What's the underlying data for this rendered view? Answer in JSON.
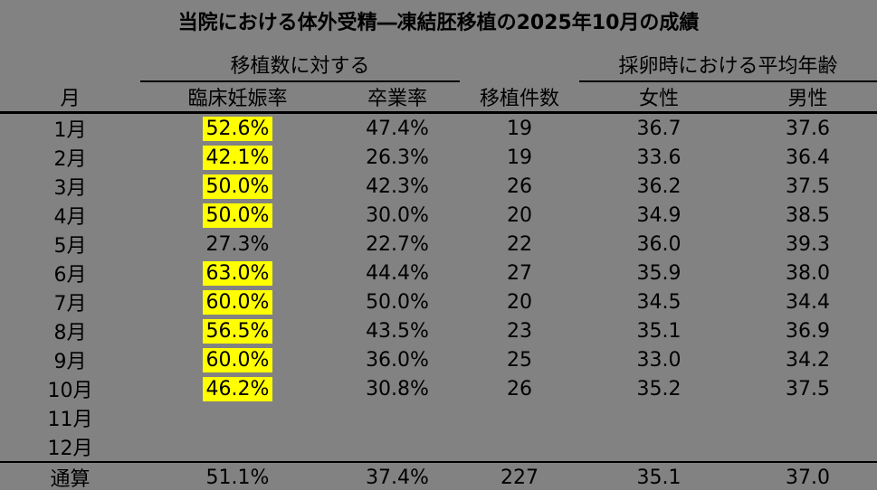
{
  "title": "当院における体外受精―凍結胚移植の2025年10月の成績",
  "colors": {
    "background": "#828282",
    "highlight": "#ffff00",
    "text": "#000000",
    "rule": "#000000"
  },
  "table": {
    "group_headers": [
      {
        "label": "移植数に対する",
        "spans_columns": [
          "臨床妊娠率",
          "卒業率"
        ]
      },
      {
        "label": "採卵時における平均年齢",
        "spans_columns": [
          "女性",
          "男性"
        ]
      }
    ],
    "columns": [
      "月",
      "臨床妊娠率",
      "卒業率",
      "移植件数",
      "女性",
      "男性"
    ],
    "rows": [
      {
        "cells": [
          "1月",
          "52.6%",
          "47.4%",
          "19",
          "36.7",
          "37.6"
        ],
        "highlight_col1": true
      },
      {
        "cells": [
          "2月",
          "42.1%",
          "26.3%",
          "19",
          "33.6",
          "36.4"
        ],
        "highlight_col1": true
      },
      {
        "cells": [
          "3月",
          "50.0%",
          "42.3%",
          "26",
          "36.2",
          "37.5"
        ],
        "highlight_col1": true
      },
      {
        "cells": [
          "4月",
          "50.0%",
          "30.0%",
          "20",
          "34.9",
          "38.5"
        ],
        "highlight_col1": true
      },
      {
        "cells": [
          "5月",
          "27.3%",
          "22.7%",
          "22",
          "36.0",
          "39.3"
        ],
        "highlight_col1": false
      },
      {
        "cells": [
          "6月",
          "63.0%",
          "44.4%",
          "27",
          "35.9",
          "38.0"
        ],
        "highlight_col1": true
      },
      {
        "cells": [
          "7月",
          "60.0%",
          "50.0%",
          "20",
          "34.5",
          "34.4"
        ],
        "highlight_col1": true
      },
      {
        "cells": [
          "8月",
          "56.5%",
          "43.5%",
          "23",
          "35.1",
          "36.9"
        ],
        "highlight_col1": true
      },
      {
        "cells": [
          "9月",
          "60.0%",
          "36.0%",
          "25",
          "33.0",
          "34.2"
        ],
        "highlight_col1": true
      },
      {
        "cells": [
          "10月",
          "46.2%",
          "30.8%",
          "26",
          "35.2",
          "37.5"
        ],
        "highlight_col1": true
      },
      {
        "cells": [
          "11月",
          "",
          "",
          "",
          "",
          ""
        ],
        "highlight_col1": false
      },
      {
        "cells": [
          "12月",
          "",
          "",
          "",
          "",
          ""
        ],
        "highlight_col1": false
      }
    ],
    "total_row": {
      "cells": [
        "通算",
        "51.1%",
        "37.4%",
        "227",
        "35.1",
        "37.0"
      ],
      "highlight_col1": false
    }
  },
  "chart_data": {
    "type": "table",
    "title": "当院における体外受精―凍結胚移植の2025年10月の成績",
    "column_groups": [
      {
        "label": "移植数に対する",
        "columns": [
          "臨床妊娠率",
          "卒業率"
        ]
      },
      {
        "label": "採卵時における平均年齢",
        "columns": [
          "女性",
          "男性"
        ]
      }
    ],
    "columns": [
      "月",
      "臨床妊娠率",
      "卒業率",
      "移植件数",
      "女性",
      "男性"
    ],
    "rows": [
      {
        "month": "1月",
        "clinical_pregnancy_rate_pct": 52.6,
        "graduation_rate_pct": 47.4,
        "transfer_count": 19,
        "avg_age_female": 36.7,
        "avg_age_male": 37.6,
        "pregnancy_rate_highlighted": true
      },
      {
        "month": "2月",
        "clinical_pregnancy_rate_pct": 42.1,
        "graduation_rate_pct": 26.3,
        "transfer_count": 19,
        "avg_age_female": 33.6,
        "avg_age_male": 36.4,
        "pregnancy_rate_highlighted": true
      },
      {
        "month": "3月",
        "clinical_pregnancy_rate_pct": 50.0,
        "graduation_rate_pct": 42.3,
        "transfer_count": 26,
        "avg_age_female": 36.2,
        "avg_age_male": 37.5,
        "pregnancy_rate_highlighted": true
      },
      {
        "month": "4月",
        "clinical_pregnancy_rate_pct": 50.0,
        "graduation_rate_pct": 30.0,
        "transfer_count": 20,
        "avg_age_female": 34.9,
        "avg_age_male": 38.5,
        "pregnancy_rate_highlighted": true
      },
      {
        "month": "5月",
        "clinical_pregnancy_rate_pct": 27.3,
        "graduation_rate_pct": 22.7,
        "transfer_count": 22,
        "avg_age_female": 36.0,
        "avg_age_male": 39.3,
        "pregnancy_rate_highlighted": false
      },
      {
        "month": "6月",
        "clinical_pregnancy_rate_pct": 63.0,
        "graduation_rate_pct": 44.4,
        "transfer_count": 27,
        "avg_age_female": 35.9,
        "avg_age_male": 38.0,
        "pregnancy_rate_highlighted": true
      },
      {
        "month": "7月",
        "clinical_pregnancy_rate_pct": 60.0,
        "graduation_rate_pct": 50.0,
        "transfer_count": 20,
        "avg_age_female": 34.5,
        "avg_age_male": 34.4,
        "pregnancy_rate_highlighted": true
      },
      {
        "month": "8月",
        "clinical_pregnancy_rate_pct": 56.5,
        "graduation_rate_pct": 43.5,
        "transfer_count": 23,
        "avg_age_female": 35.1,
        "avg_age_male": 36.9,
        "pregnancy_rate_highlighted": true
      },
      {
        "month": "9月",
        "clinical_pregnancy_rate_pct": 60.0,
        "graduation_rate_pct": 36.0,
        "transfer_count": 25,
        "avg_age_female": 33.0,
        "avg_age_male": 34.2,
        "pregnancy_rate_highlighted": true
      },
      {
        "month": "10月",
        "clinical_pregnancy_rate_pct": 46.2,
        "graduation_rate_pct": 30.8,
        "transfer_count": 26,
        "avg_age_female": 35.2,
        "avg_age_male": 37.5,
        "pregnancy_rate_highlighted": true
      },
      {
        "month": "11月",
        "clinical_pregnancy_rate_pct": null,
        "graduation_rate_pct": null,
        "transfer_count": null,
        "avg_age_female": null,
        "avg_age_male": null,
        "pregnancy_rate_highlighted": false
      },
      {
        "month": "12月",
        "clinical_pregnancy_rate_pct": null,
        "graduation_rate_pct": null,
        "transfer_count": null,
        "avg_age_female": null,
        "avg_age_male": null,
        "pregnancy_rate_highlighted": false
      }
    ],
    "total": {
      "month": "通算",
      "clinical_pregnancy_rate_pct": 51.1,
      "graduation_rate_pct": 37.4,
      "transfer_count": 227,
      "avg_age_female": 35.1,
      "avg_age_male": 37.0
    },
    "layout_hints": {
      "background": "gray",
      "highlight_style": "yellow fill on clinical pregnancy rate cells",
      "rules": [
        "underline beneath each column group header",
        "thick rule below column header row",
        "rules above and below total row"
      ]
    }
  }
}
